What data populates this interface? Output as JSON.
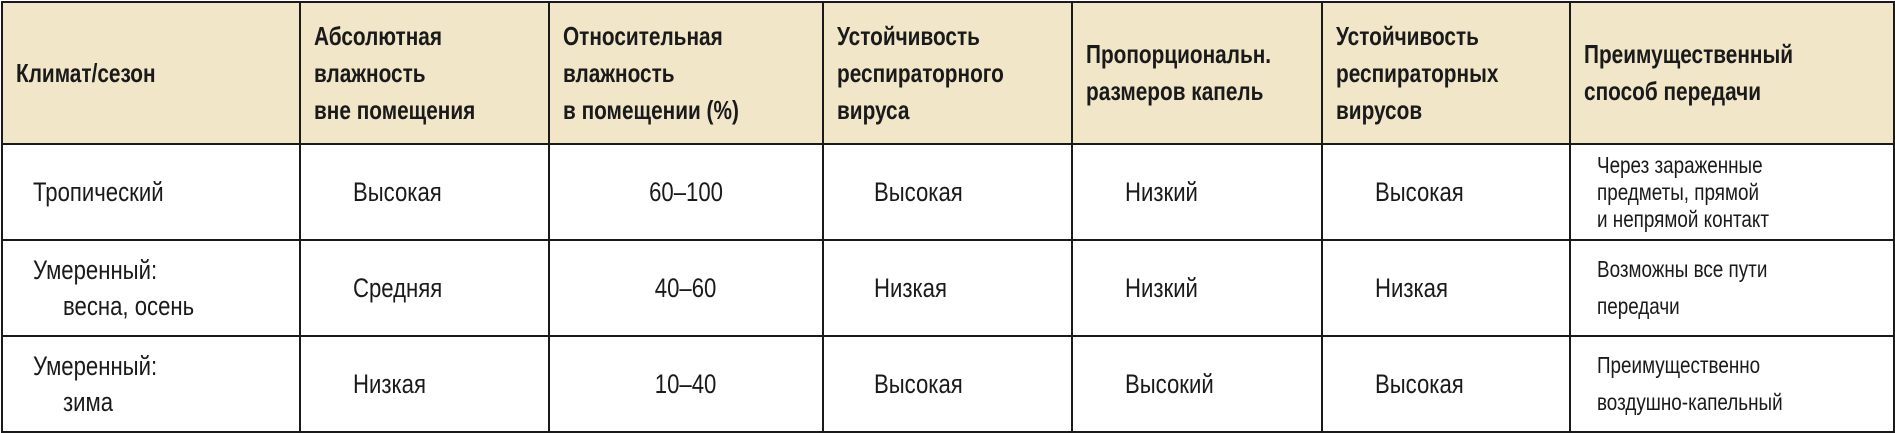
{
  "table": {
    "header_bg": "#f1e6c8",
    "headers": [
      [
        "Климат/сезон"
      ],
      [
        "Абсолютная",
        "влажность",
        "вне помещения"
      ],
      [
        "Относительная",
        "влажность",
        "в помещении (%)"
      ],
      [
        "Устойчивость",
        "респираторного",
        "вируса"
      ],
      [
        "Пропорциональн.",
        "размеров капель"
      ],
      [
        "Устойчивость",
        "респираторных",
        "вирусов"
      ],
      [
        "Преимущественный",
        "способ передачи"
      ]
    ],
    "rows": [
      {
        "climate": [
          "Тропический"
        ],
        "abs_humidity": "Высокая",
        "rel_humidity": "60–100",
        "virus_stability": "Высокая",
        "droplet_size": "Низкий",
        "viruses_stability": "Высокая",
        "transmission": [
          "Через зараженные",
          "предметы, прямой",
          "и непрямой контакт"
        ]
      },
      {
        "climate": [
          "Умеренный:",
          "весна, осень"
        ],
        "abs_humidity": "Средняя",
        "rel_humidity": "40–60",
        "virus_stability": "Низкая",
        "droplet_size": "Низкий",
        "viruses_stability": "Низкая",
        "transmission": [
          "Возможны все пути",
          "передачи"
        ]
      },
      {
        "climate": [
          "Умеренный:",
          "зима"
        ],
        "abs_humidity": "Низкая",
        "rel_humidity": "10–40",
        "virus_stability": "Высокая",
        "droplet_size": "Высокий",
        "viruses_stability": "Высокая",
        "transmission": [
          "Преимущественно",
          "воздушно-капельный"
        ]
      }
    ]
  }
}
